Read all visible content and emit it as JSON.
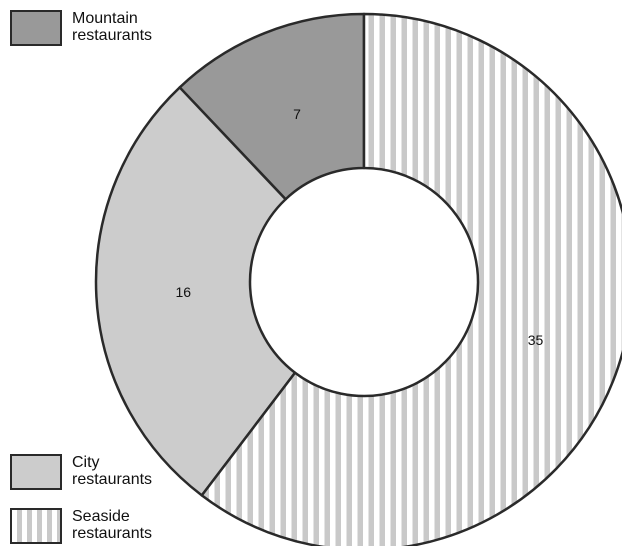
{
  "chart_data": {
    "type": "pie",
    "variant": "donut",
    "title": "",
    "categories": [
      "Mountain restaurants",
      "City restaurants",
      "Seaside restaurants"
    ],
    "values": [
      7,
      16,
      35
    ],
    "legend": [
      {
        "line1": "Mountain",
        "line2": "restaurants"
      },
      {
        "line1": "City",
        "line2": "restaurants"
      },
      {
        "line1": "Seaside",
        "line2": "restaurants"
      }
    ],
    "legend_position": "left",
    "colors": {
      "mountain": "#999999",
      "city": "#cccccc",
      "seaside_stripe": "#c9c9c9",
      "seaside_base": "#ffffff",
      "outline": "#2a2a2a"
    },
    "fills": [
      "solid-dark-gray",
      "solid-light-gray",
      "vertical-stripes"
    ]
  }
}
